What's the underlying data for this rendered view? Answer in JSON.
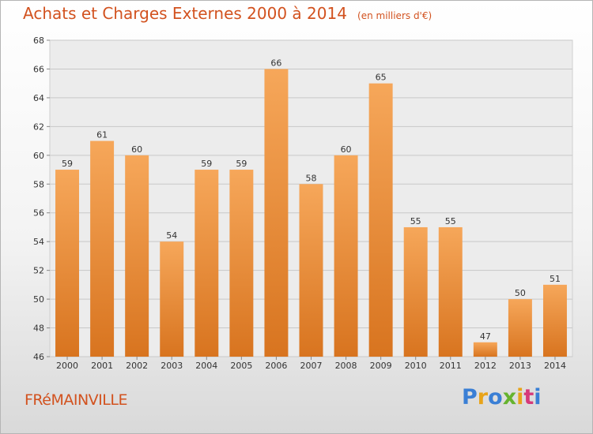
{
  "title": "Achats et Charges Externes 2000 à 2014",
  "subtitle": "(en milliers d'€)",
  "commune": "FRéMAINVILLE",
  "logo": {
    "text": "Proxiti",
    "colors": [
      "#3a7fd5",
      "#e8a41a",
      "#3a7fd5",
      "#66b32e",
      "#e8a41a",
      "#d63a7a",
      "#3a7fd5"
    ]
  },
  "chart_data": {
    "type": "bar",
    "title": "Achats et Charges Externes 2000 à 2014",
    "subtitle": "(en milliers d'€)",
    "categories": [
      "2000",
      "2001",
      "2002",
      "2003",
      "2004",
      "2005",
      "2006",
      "2007",
      "2008",
      "2009",
      "2010",
      "2011",
      "2012",
      "2013",
      "2014"
    ],
    "values": [
      59,
      61,
      60,
      54,
      59,
      59,
      66,
      58,
      60,
      65,
      55,
      55,
      47,
      50,
      51
    ],
    "ylim": [
      46,
      68
    ],
    "yticks": [
      46,
      48,
      50,
      52,
      54,
      56,
      58,
      60,
      62,
      64,
      66,
      68
    ],
    "grid": true,
    "bar_color": "#f0963e"
  }
}
